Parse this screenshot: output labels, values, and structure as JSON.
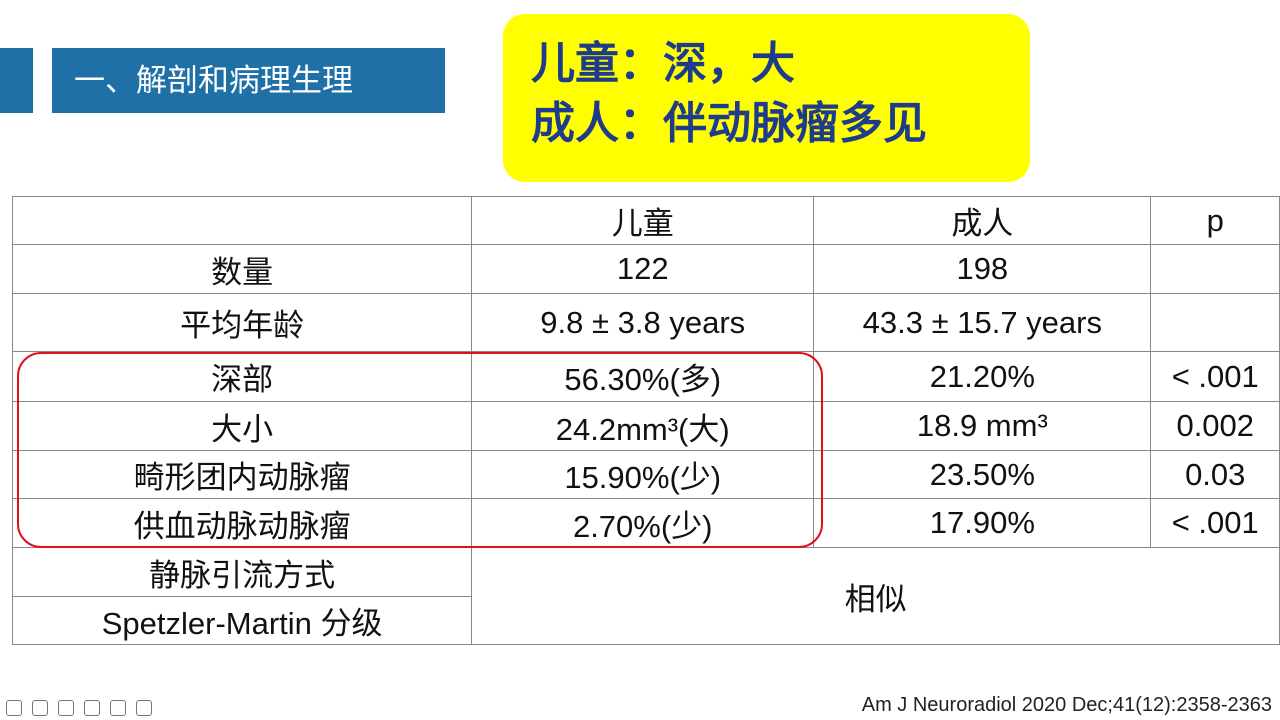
{
  "header": {
    "title": "一、解剖和病理生理"
  },
  "callout": {
    "lines": [
      "儿童：深，大",
      "成人：伴动脉瘤多见"
    ]
  },
  "table": {
    "columns": [
      "儿童",
      "成人",
      "p"
    ],
    "rows": [
      {
        "label": "数量",
        "child": "122",
        "adult": "198"
      },
      {
        "label": "平均年龄",
        "child": "9.8 ± 3.8 years",
        "adult": "43.3 ± 15.7 years"
      },
      {
        "label": "深部",
        "child": "56.30%(多)",
        "adult": "21.20%",
        "p": "< .001"
      },
      {
        "label": "大小",
        "child": "24.2mm³(大)",
        "adult": "18.9 mm³",
        "p": "0.002"
      },
      {
        "label": "畸形团内动脉瘤",
        "child": "15.90%(少)",
        "adult": "23.50%",
        "p": "0.03"
      },
      {
        "label": "供血动脉动脉瘤",
        "child": "2.70%(少)",
        "adult": "17.90%",
        "p": "< .001"
      },
      {
        "label": "静脉引流方式"
      },
      {
        "label": "Spetzler-Martin 分级"
      }
    ],
    "merged": "相似"
  },
  "citation": "Am J Neuroradiol 2020 Dec;41(12):2358-2363"
}
